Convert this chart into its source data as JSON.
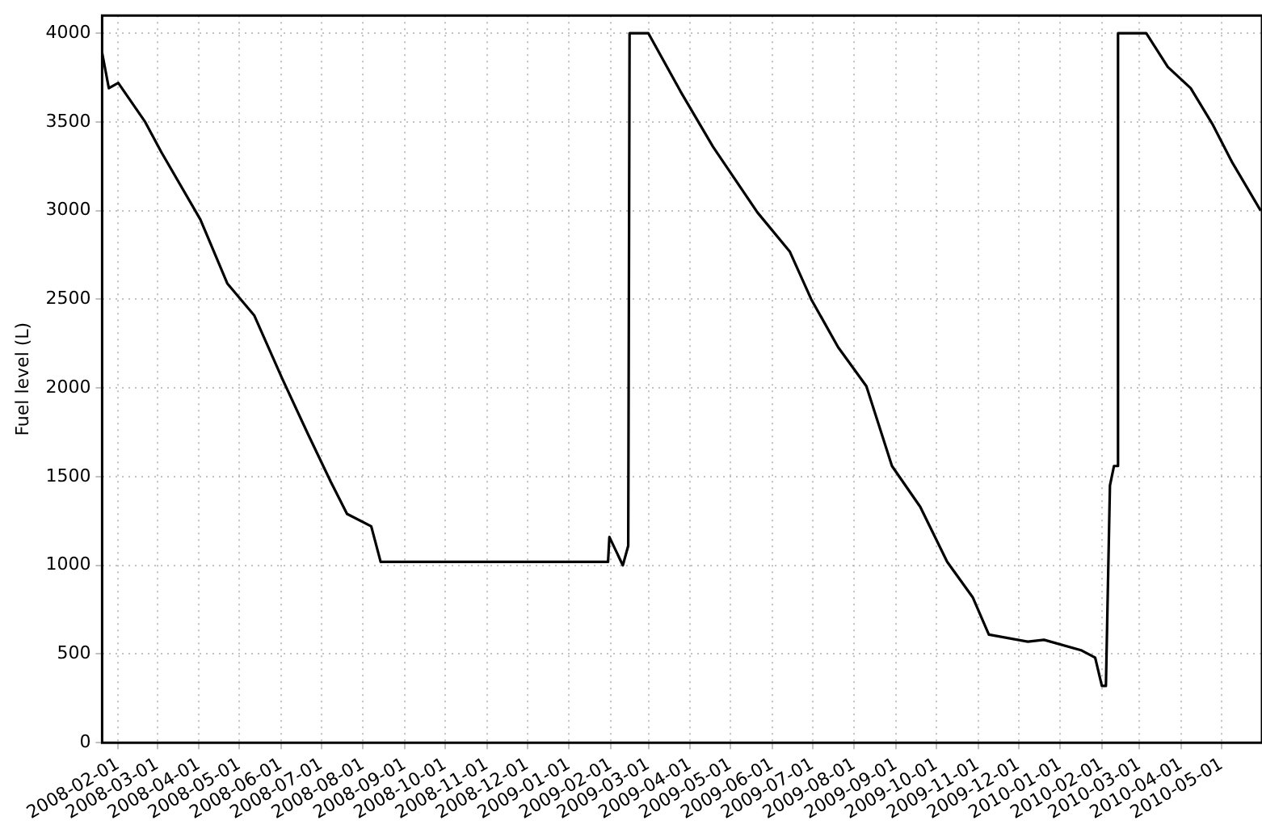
{
  "chart_data": {
    "type": "line",
    "ylabel": "Fuel level (L)",
    "x": [
      "2008-01-20",
      "2008-01-25",
      "2008-02-01",
      "2008-02-21",
      "2008-03-04",
      "2008-04-02",
      "2008-04-22",
      "2008-05-12",
      "2008-06-02",
      "2008-06-21",
      "2008-07-08",
      "2008-07-20",
      "2008-08-07",
      "2008-08-14",
      "2009-01-30",
      "2009-01-31",
      "2009-02-10",
      "2009-02-14",
      "2009-02-15",
      "2009-03-01",
      "2009-03-25",
      "2009-04-18",
      "2009-05-21",
      "2009-06-14",
      "2009-06-30",
      "2009-07-20",
      "2009-08-10",
      "2009-08-29",
      "2009-09-19",
      "2009-10-09",
      "2009-10-28",
      "2009-11-09",
      "2009-12-08",
      "2009-12-20",
      "2010-01-17",
      "2010-01-27",
      "2010-02-01",
      "2010-02-04",
      "2010-02-07",
      "2010-02-10",
      "2010-02-12",
      "2010-02-13",
      "2010-03-06",
      "2010-03-22",
      "2010-04-08",
      "2010-04-24",
      "2010-05-09",
      "2010-05-30"
    ],
    "series": [
      {
        "color": "#000000",
        "values": [
          3890,
          3690,
          3720,
          3500,
          3330,
          2950,
          2590,
          2410,
          2050,
          1740,
          1470,
          1290,
          1220,
          1020,
          1020,
          1160,
          1000,
          1110,
          4000,
          4000,
          3670,
          3360,
          2990,
          2770,
          2500,
          2230,
          2010,
          1560,
          1330,
          1020,
          820,
          610,
          570,
          580,
          520,
          480,
          320,
          320,
          1450,
          1560,
          1560,
          4000,
          4000,
          3810,
          3690,
          3490,
          3270,
          3000
        ]
      }
    ],
    "xlim": [
      "2008-01-20",
      "2010-05-31"
    ],
    "xticks": [
      "2008-02-01",
      "2008-03-01",
      "2008-04-01",
      "2008-05-01",
      "2008-06-01",
      "2008-07-01",
      "2008-08-01",
      "2008-09-01",
      "2008-10-01",
      "2008-11-01",
      "2008-12-01",
      "2009-01-01",
      "2009-02-01",
      "2009-03-01",
      "2009-04-01",
      "2009-05-01",
      "2009-06-01",
      "2009-07-01",
      "2009-08-01",
      "2009-09-01",
      "2009-10-01",
      "2009-11-01",
      "2009-12-01",
      "2010-01-01",
      "2010-02-01",
      "2010-03-01",
      "2010-04-01",
      "2010-05-01"
    ],
    "ylim": [
      0,
      4100
    ],
    "yticks": [
      0,
      500,
      1000,
      1500,
      2000,
      2500,
      3000,
      3500,
      4000
    ],
    "grid": true,
    "legend": false,
    "marker": "none",
    "line_style": "solid"
  }
}
